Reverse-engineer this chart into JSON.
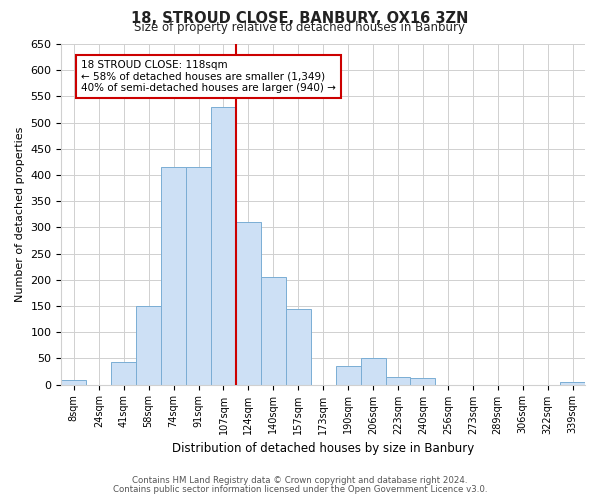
{
  "title": "18, STROUD CLOSE, BANBURY, OX16 3ZN",
  "subtitle": "Size of property relative to detached houses in Banbury",
  "xlabel": "Distribution of detached houses by size in Banbury",
  "ylabel": "Number of detached properties",
  "bar_labels": [
    "8sqm",
    "24sqm",
    "41sqm",
    "58sqm",
    "74sqm",
    "91sqm",
    "107sqm",
    "124sqm",
    "140sqm",
    "157sqm",
    "173sqm",
    "190sqm",
    "206sqm",
    "223sqm",
    "240sqm",
    "256sqm",
    "273sqm",
    "289sqm",
    "306sqm",
    "322sqm",
    "339sqm"
  ],
  "bar_values": [
    8,
    0,
    44,
    150,
    415,
    415,
    530,
    310,
    205,
    145,
    0,
    35,
    50,
    15,
    13,
    0,
    0,
    0,
    0,
    0,
    5
  ],
  "bar_color": "#cde0f5",
  "bar_edge_color": "#7aadd4",
  "vline_color": "#cc0000",
  "vline_x_index": 7,
  "ylim": [
    0,
    650
  ],
  "yticks": [
    0,
    50,
    100,
    150,
    200,
    250,
    300,
    350,
    400,
    450,
    500,
    550,
    600,
    650
  ],
  "annotation_title": "18 STROUD CLOSE: 118sqm",
  "annotation_line1": "← 58% of detached houses are smaller (1,349)",
  "annotation_line2": "40% of semi-detached houses are larger (940) →",
  "annotation_box_color": "#ffffff",
  "annotation_box_edge": "#cc0000",
  "footer_line1": "Contains HM Land Registry data © Crown copyright and database right 2024.",
  "footer_line2": "Contains public sector information licensed under the Open Government Licence v3.0.",
  "background_color": "#ffffff",
  "grid_color": "#d0d0d0"
}
